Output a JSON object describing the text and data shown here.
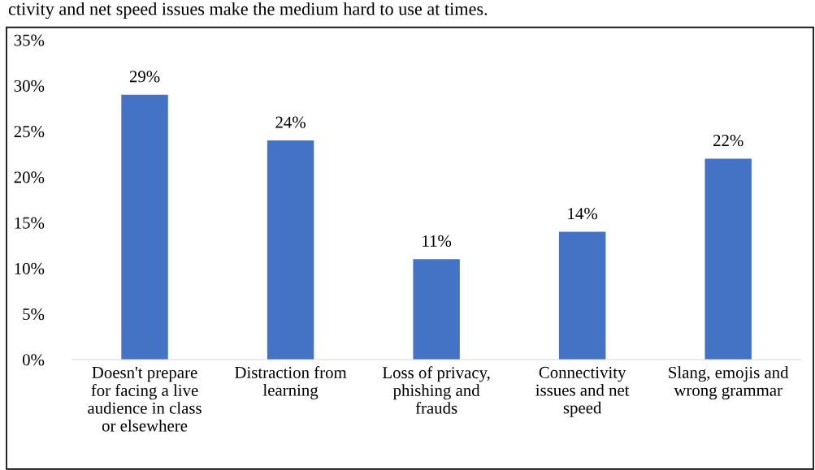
{
  "chart_data": {
    "type": "bar",
    "categories": [
      "Doesn't prepare\nfor facing a live\naudience in class\nor elsewhere",
      "Distraction from\nlearning",
      "Loss of privacy,\nphishing and\nfrauds",
      "Connectivity\nissues and net\nspeed",
      "Slang, emojis and\nwrong grammar"
    ],
    "values": [
      29,
      24,
      11,
      14,
      22
    ],
    "value_labels": [
      "29%",
      "24%",
      "11%",
      "14%",
      "22%"
    ],
    "color": "#4472c4",
    "ylim": [
      0,
      35
    ],
    "yticks": [
      {
        "value": 0,
        "label": "0%"
      },
      {
        "value": 5,
        "label": "5%"
      },
      {
        "value": 10,
        "label": "10%"
      },
      {
        "value": 15,
        "label": "15%"
      },
      {
        "value": 20,
        "label": "20%"
      },
      {
        "value": 25,
        "label": "25%"
      },
      {
        "value": 30,
        "label": "30%"
      },
      {
        "value": 35,
        "label": "35%"
      }
    ],
    "grid": false,
    "annotations": [
      "ctivity and net speed issues make the medium hard to use at times."
    ]
  }
}
